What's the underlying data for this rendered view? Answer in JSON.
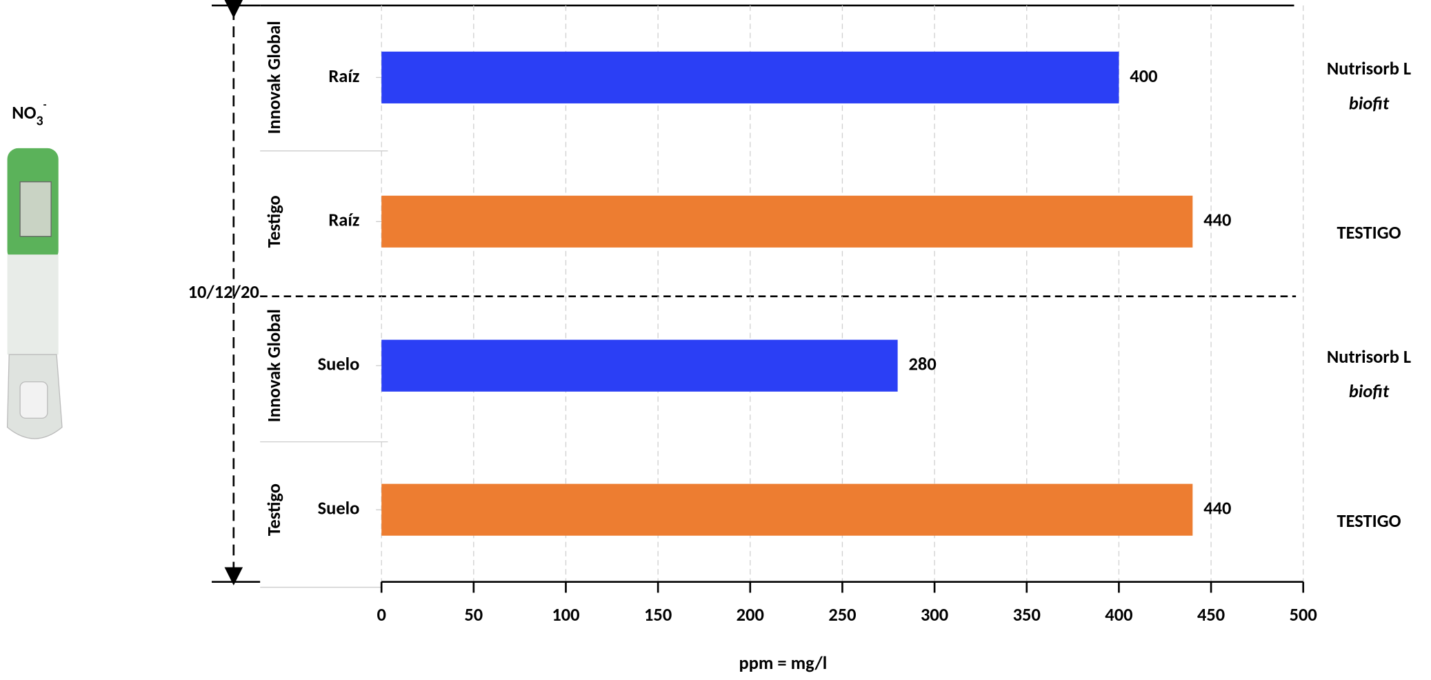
{
  "chart_data": {
    "type": "bar",
    "orientation": "horizontal",
    "categories": [
      "Raíz",
      "Raíz",
      "Suelo",
      "Suelo"
    ],
    "groups": [
      "Innovak Global",
      "Testigo",
      "Innovak Global",
      "Testigo"
    ],
    "values": [
      400,
      440,
      280,
      440
    ],
    "colors": [
      "#2b3ff5",
      "#ed7d31",
      "#2b3ff5",
      "#ed7d31"
    ],
    "side_labels": [
      "Nutrisorb L",
      "TESTIGO",
      "Nutrisorb L",
      "TESTIGO"
    ],
    "side_sublabel": "biofit",
    "date": "10/12/20",
    "x_label": "ppm = mg/l",
    "xlim": [
      0,
      500
    ],
    "xticks": [
      0,
      50,
      100,
      150,
      200,
      250,
      300,
      350,
      400,
      450,
      500
    ],
    "grid": true
  },
  "indicator": {
    "label": "NO",
    "subscript": "3",
    "superscript": "-"
  }
}
